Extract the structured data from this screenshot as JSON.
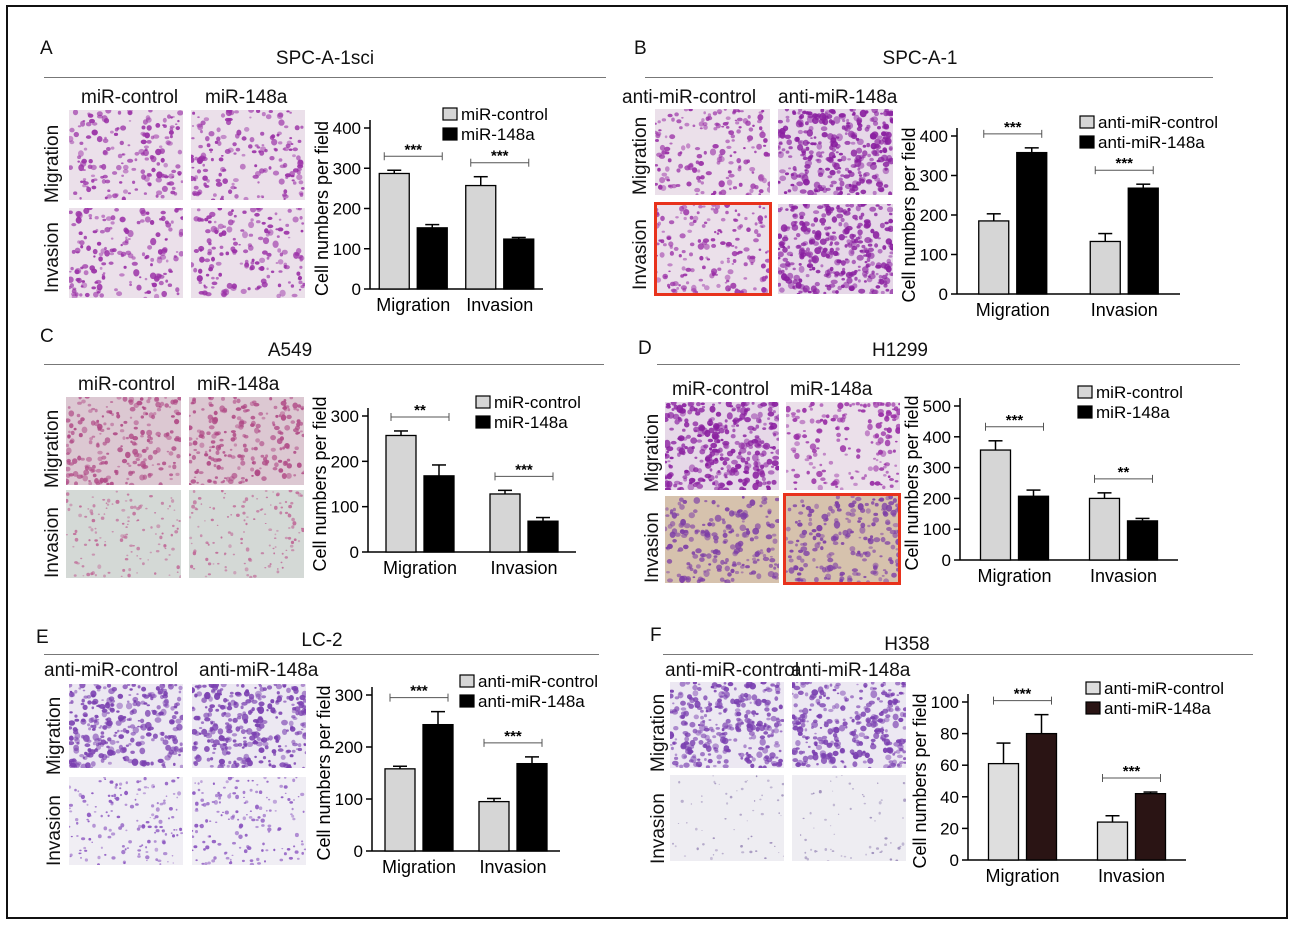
{
  "figure": {
    "panels": [
      {
        "letter": "A",
        "title": "SPC-A-1sci",
        "col_labels": [
          "miR-control",
          "miR-148a"
        ],
        "row_labels": [
          "Migration",
          "Invasion"
        ],
        "highlight": null,
        "micro_styles": [
          "mid",
          "mid",
          "mid",
          "mid"
        ]
      },
      {
        "letter": "B",
        "title": "SPC-A-1",
        "col_labels": [
          "anti-miR-control",
          "anti-miR-148a"
        ],
        "row_labels": [
          "Migration",
          "Invasion"
        ],
        "highlight": [
          1,
          0
        ],
        "micro_styles": [
          "mid",
          "dense",
          "mid",
          "dense"
        ]
      },
      {
        "letter": "C",
        "title": "A549",
        "col_labels": [
          "miR-control",
          "miR-148a"
        ],
        "row_labels": [
          "Migration",
          "Invasion"
        ],
        "highlight": null,
        "micro_styles": [
          "pink",
          "pink",
          "gray",
          "gray"
        ]
      },
      {
        "letter": "D",
        "title": "H1299",
        "col_labels": [
          "miR-control",
          "miR-148a"
        ],
        "row_labels": [
          "Migration",
          "Invasion"
        ],
        "highlight": [
          1,
          1
        ],
        "micro_styles": [
          "dense",
          "mid",
          "tan",
          "tan"
        ]
      },
      {
        "letter": "E",
        "title": "LC-2",
        "col_labels": [
          "anti-miR-control",
          "anti-miR-148a"
        ],
        "row_labels": [
          "Migration",
          "Invasion"
        ],
        "highlight": null,
        "micro_styles": [
          "violet",
          "violet",
          "light",
          "light"
        ]
      },
      {
        "letter": "F",
        "title": "H358",
        "col_labels": [
          "anti-miR-control",
          "anti-miR-148a"
        ],
        "row_labels": [
          "Migration",
          "Invasion"
        ],
        "highlight": null,
        "micro_styles": [
          "violet",
          "violet",
          "faint",
          "faint"
        ]
      }
    ]
  },
  "chart_data": [
    {
      "panel": "A",
      "type": "bar",
      "categories": [
        "Migration",
        "Invasion"
      ],
      "series": [
        {
          "name": "miR-control",
          "values": [
            287,
            257
          ],
          "errors": [
            8,
            22
          ],
          "color": "#d6d6d6"
        },
        {
          "name": "miR-148a",
          "values": [
            152,
            124
          ],
          "errors": [
            8,
            4
          ],
          "color": "#000000"
        }
      ],
      "ylabel": "Cell numbers per field",
      "ylim": [
        0,
        400
      ],
      "yticks": [
        "0",
        "100",
        "200",
        "300",
        "400"
      ],
      "significance": [
        "***",
        "***"
      ],
      "legend": "top-right"
    },
    {
      "panel": "B",
      "type": "bar",
      "categories": [
        "Migration",
        "Invasion"
      ],
      "series": [
        {
          "name": "anti-miR-control",
          "values": [
            185,
            133
          ],
          "errors": [
            18,
            20
          ],
          "color": "#d6d6d6"
        },
        {
          "name": "anti-miR-148a",
          "values": [
            358,
            268
          ],
          "errors": [
            12,
            10
          ],
          "color": "#000000"
        }
      ],
      "ylabel": "Cell numbers per field",
      "ylim": [
        0,
        400
      ],
      "yticks": [
        "0",
        "100",
        "200",
        "300",
        "400"
      ],
      "significance": [
        "***",
        "***"
      ],
      "legend": "top-right"
    },
    {
      "panel": "C",
      "type": "bar",
      "categories": [
        "Migration",
        "Invasion"
      ],
      "series": [
        {
          "name": "miR-control",
          "values": [
            257,
            128
          ],
          "errors": [
            10,
            8
          ],
          "color": "#d6d6d6"
        },
        {
          "name": "miR-148a",
          "values": [
            168,
            68
          ],
          "errors": [
            24,
            8
          ],
          "color": "#000000"
        }
      ],
      "ylabel": "Cell numbers per field",
      "ylim": [
        0,
        300
      ],
      "yticks": [
        "0",
        "100",
        "200",
        "300"
      ],
      "significance": [
        "**",
        "***"
      ],
      "legend": "top-right"
    },
    {
      "panel": "D",
      "type": "bar",
      "categories": [
        "Migration",
        "Invasion"
      ],
      "series": [
        {
          "name": "miR-control",
          "values": [
            357,
            200
          ],
          "errors": [
            30,
            18
          ],
          "color": "#d6d6d6"
        },
        {
          "name": "miR-148a",
          "values": [
            207,
            127
          ],
          "errors": [
            20,
            8
          ],
          "color": "#000000"
        }
      ],
      "ylabel": "Cell numbers per field",
      "ylim": [
        0,
        500
      ],
      "yticks": [
        "0",
        "100",
        "200",
        "300",
        "400",
        "500"
      ],
      "significance": [
        "***",
        "**"
      ],
      "legend": "top-right"
    },
    {
      "panel": "E",
      "type": "bar",
      "categories": [
        "Migration",
        "Invasion"
      ],
      "series": [
        {
          "name": "anti-miR-control",
          "values": [
            158,
            95
          ],
          "errors": [
            5,
            6
          ],
          "color": "#d6d6d6"
        },
        {
          "name": "anti-miR-148a",
          "values": [
            243,
            168
          ],
          "errors": [
            25,
            13
          ],
          "color": "#000000"
        }
      ],
      "ylabel": "Cell numbers per field",
      "ylim": [
        0,
        300
      ],
      "yticks": [
        "0",
        "100",
        "200",
        "300"
      ],
      "significance": [
        "***",
        "***"
      ],
      "legend": "top-right"
    },
    {
      "panel": "F",
      "type": "bar",
      "categories": [
        "Migration",
        "Invasion"
      ],
      "series": [
        {
          "name": "anti-miR-control",
          "values": [
            61,
            24
          ],
          "errors": [
            13,
            4
          ],
          "color": "#dedede"
        },
        {
          "name": "anti-miR-148a",
          "values": [
            80,
            42
          ],
          "errors": [
            12,
            1
          ],
          "color": "#2a1414"
        }
      ],
      "ylabel": "Cell numbers per field",
      "ylim": [
        0,
        100
      ],
      "yticks": [
        "0",
        "20",
        "40",
        "60",
        "80",
        "100"
      ],
      "significance": [
        "***",
        "***"
      ],
      "legend": "top-right"
    }
  ]
}
